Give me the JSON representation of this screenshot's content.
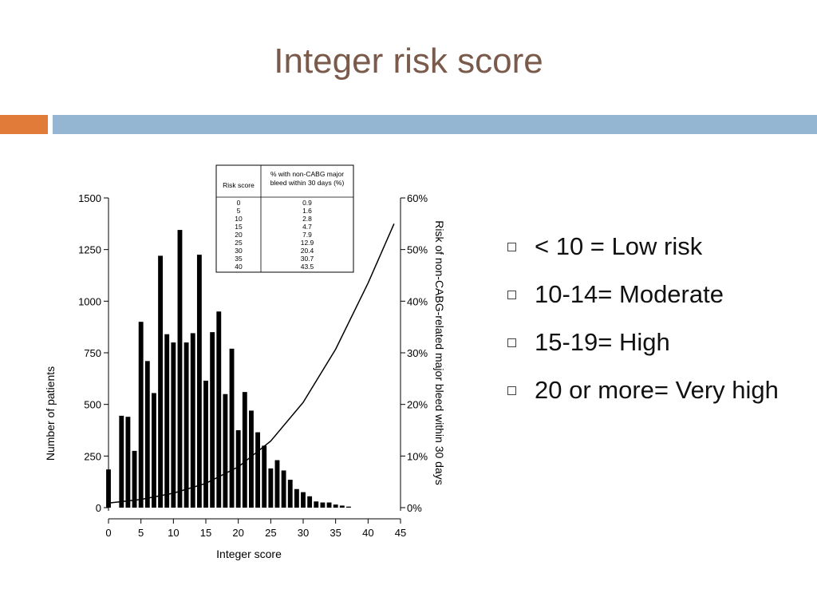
{
  "slide": {
    "title": "Integer risk score",
    "band_colors": {
      "accent": "#e07b3a",
      "main": "#94b6d2"
    },
    "bullets": [
      "< 10 = Low risk",
      "10-14= Moderate",
      "15-19= High",
      "20 or more= Very high"
    ]
  },
  "chart_data": {
    "type": "bar",
    "xlabel": "Integer score",
    "ylabel": "Number of patients",
    "y2label": "Risk of non-CABG-related major bleed within 30 days",
    "xlim": [
      0,
      45
    ],
    "ylim": [
      0,
      1500
    ],
    "y2lim": [
      0,
      60
    ],
    "xticks": [
      0,
      5,
      10,
      15,
      20,
      25,
      30,
      35,
      40,
      45
    ],
    "yticks": [
      0,
      250,
      500,
      750,
      1000,
      1250,
      1500
    ],
    "y2ticks": [
      "0%",
      "10%",
      "20%",
      "30%",
      "40%",
      "50%",
      "60%"
    ],
    "bar_color": "#000000",
    "bars": {
      "x": [
        0,
        1,
        2,
        3,
        4,
        5,
        6,
        7,
        8,
        9,
        10,
        11,
        12,
        13,
        14,
        15,
        16,
        17,
        18,
        19,
        20,
        21,
        22,
        23,
        24,
        25,
        26,
        27,
        28,
        29,
        30,
        31,
        32,
        33,
        34,
        35,
        36,
        37
      ],
      "values": [
        185,
        0,
        445,
        440,
        275,
        900,
        710,
        555,
        1220,
        840,
        800,
        1345,
        800,
        845,
        1225,
        615,
        850,
        950,
        550,
        770,
        375,
        560,
        470,
        365,
        300,
        190,
        230,
        180,
        135,
        90,
        75,
        55,
        30,
        25,
        25,
        15,
        10,
        5
      ]
    },
    "risk_curve": {
      "x": [
        0,
        5,
        10,
        15,
        20,
        25,
        30,
        35,
        40,
        44
      ],
      "values": [
        0.9,
        1.6,
        2.8,
        4.7,
        7.9,
        12.9,
        20.4,
        30.7,
        43.5,
        55
      ]
    },
    "inset_table": {
      "headers": [
        "Risk score",
        "% with non-CABG major bleed within 30 days (%)"
      ],
      "rows": [
        [
          "0",
          "0.9"
        ],
        [
          "5",
          "1.6"
        ],
        [
          "10",
          "2.8"
        ],
        [
          "15",
          "4.7"
        ],
        [
          "20",
          "7.9"
        ],
        [
          "25",
          "12.9"
        ],
        [
          "30",
          "20.4"
        ],
        [
          "35",
          "30.7"
        ],
        [
          "40",
          "43.5"
        ]
      ]
    }
  }
}
